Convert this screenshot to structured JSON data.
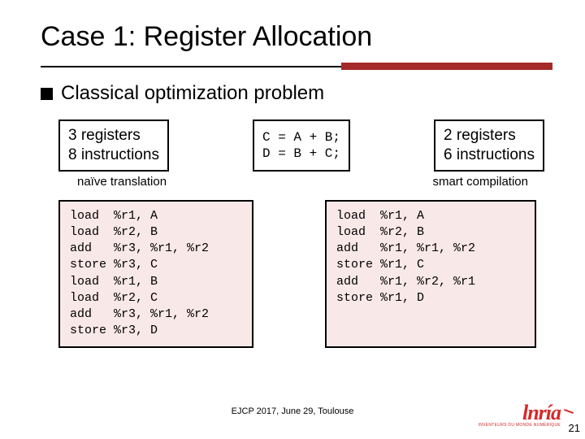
{
  "title": "Case 1: Register Allocation",
  "bullet": "Classical optimization problem",
  "box_left": "3 registers\n8 instructions",
  "box_mid": "C = A + B;\nD = B + C;",
  "box_right": "2 registers\n6 instructions",
  "sublabel_left": "naïve translation",
  "sublabel_right": "smart compilation",
  "code_left": "load  %r1, A\nload  %r2, B\nadd   %r3, %r1, %r2\nstore %r3, C\nload  %r1, B\nload  %r2, C\nadd   %r3, %r1, %r2\nstore %r3, D",
  "code_right": "load  %r1, A\nload  %r2, B\nadd   %r1, %r1, %r2\nstore %r1, C\nadd   %r1, %r2, %r1\nstore %r1, D",
  "footer": "EJCP 2017, June 29, Toulouse",
  "page_num": "21",
  "logo_main": "lnría",
  "logo_sub": "INVENTEURS DU MONDE NUMÉRIQUE",
  "colors": {
    "accent_red": "#a52a2a",
    "code_bg": "#f9e8e8",
    "logo_red": "#d62828"
  }
}
